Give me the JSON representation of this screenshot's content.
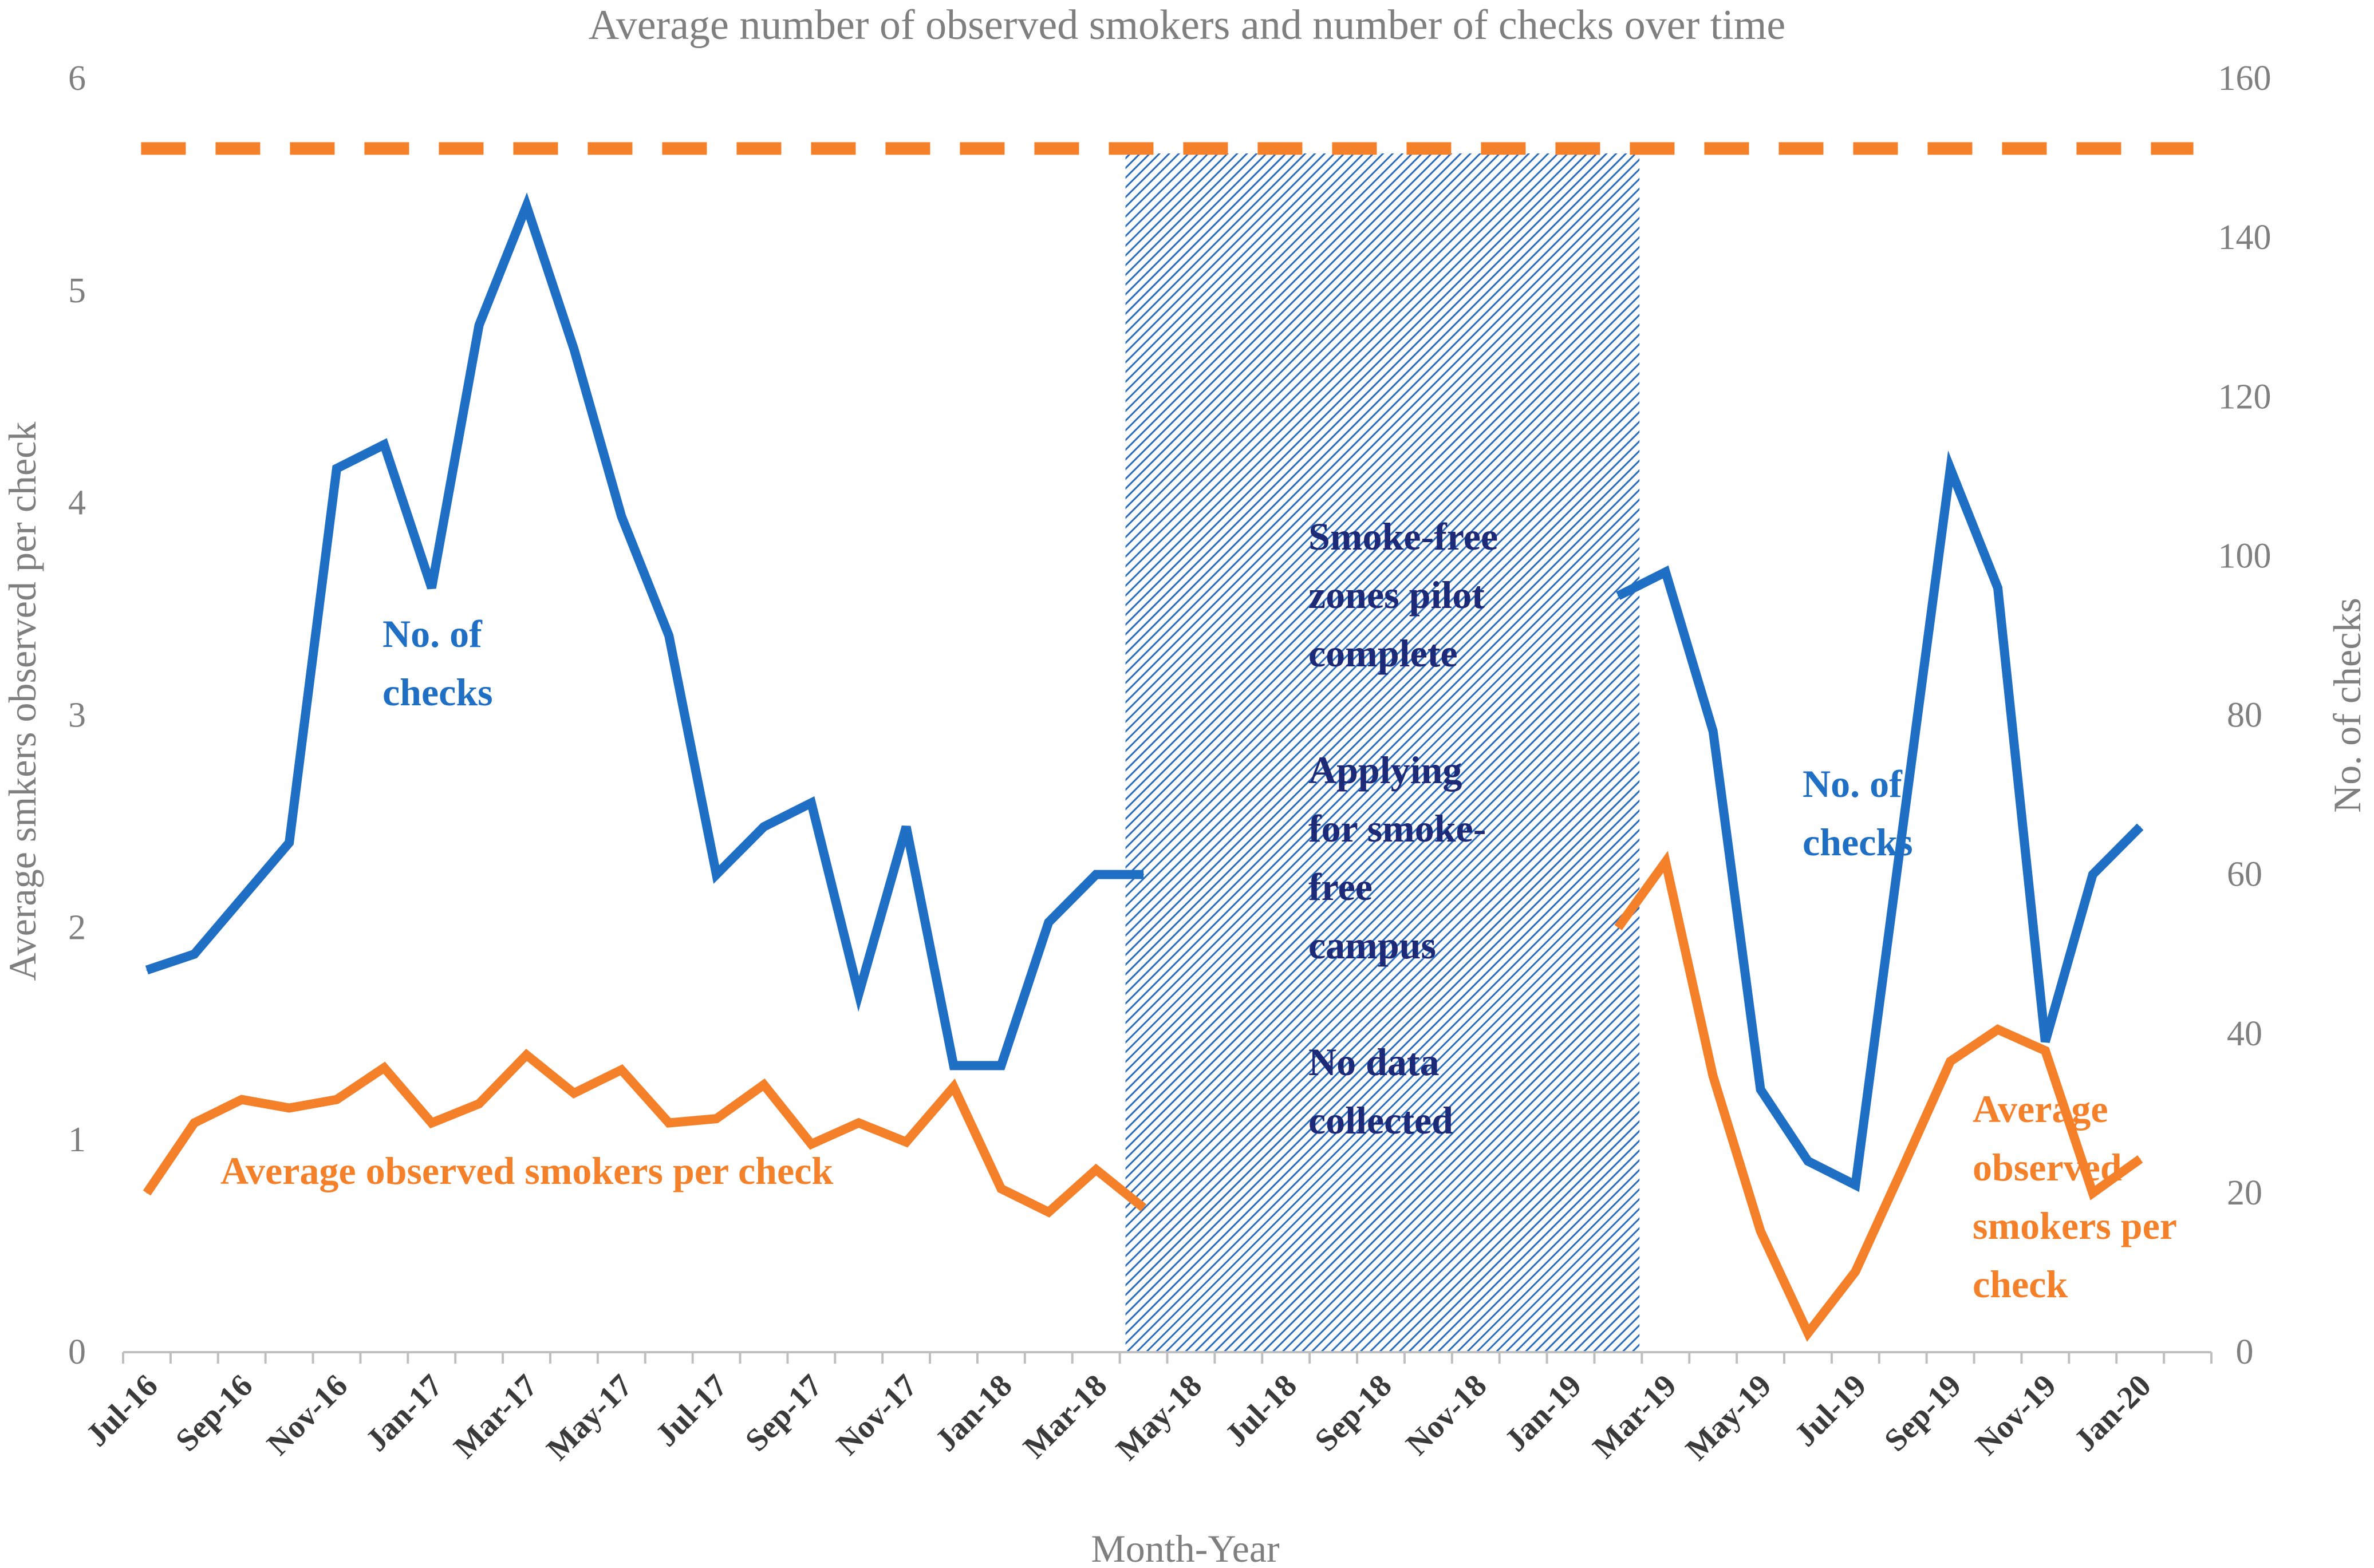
{
  "chart_data": {
    "type": "line",
    "title": "Average number of observed smokers and number of checks over time",
    "xlabel": "Month-Year",
    "ylabel_left": "Average smkers observed per check",
    "ylabel_right": "No. of checks",
    "ylim_left": [
      0,
      6
    ],
    "ylim_right": [
      0,
      160
    ],
    "yticks_left": [
      "0",
      "1",
      "2",
      "3",
      "4",
      "5",
      "6"
    ],
    "yticks_right": [
      "0",
      "20",
      "40",
      "60",
      "80",
      "100",
      "120",
      "140",
      "160"
    ],
    "x": [
      "Jul-16",
      "Aug-16",
      "Sep-16",
      "Oct-16",
      "Nov-16",
      "Dec-16",
      "Jan-17",
      "Feb-17",
      "Mar-17",
      "Apr-17",
      "May-17",
      "Jun-17",
      "Jul-17",
      "Aug-17",
      "Sep-17",
      "Oct-17",
      "Nov-17",
      "Dec-17",
      "Jan-18",
      "Feb-18",
      "Mar-18",
      "Apr-18",
      "May-18",
      "Jun-18",
      "Jul-18",
      "Aug-18",
      "Sep-18",
      "Oct-18",
      "Nov-18",
      "Dec-18",
      "Jan-19",
      "Feb-19",
      "Mar-19",
      "Apr-19",
      "May-19",
      "Jun-19",
      "Jul-19",
      "Aug-19",
      "Sep-19",
      "Oct-19",
      "Nov-19",
      "Dec-19",
      "Jan-20",
      "Feb-20"
    ],
    "x_tick_labels": [
      "Jul-16",
      "Sep-16",
      "Nov-16",
      "Jan-17",
      "Mar-17",
      "May-17",
      "Jul-17",
      "Sep-17",
      "Nov-17",
      "Jan-18",
      "Mar-18",
      "May-18",
      "Jul-18",
      "Sep-18",
      "Nov-18",
      "Jan-19",
      "Mar-19",
      "May-19",
      "Jul-19",
      "Sep-19",
      "Nov-19",
      "Jan-20"
    ],
    "series": [
      {
        "name": "No. of checks",
        "axis": "right",
        "color": "#1f6fc4",
        "values": [
          48,
          50,
          57,
          64,
          111,
          114,
          96,
          129,
          144,
          126,
          105,
          90,
          60,
          66,
          69,
          45,
          66,
          36,
          36,
          54,
          60,
          60,
          null,
          null,
          null,
          null,
          null,
          null,
          null,
          null,
          null,
          95,
          98,
          78,
          33,
          24,
          21,
          66,
          111,
          96,
          39,
          60,
          66,
          null
        ]
      },
      {
        "name": "Average observed smokers per check",
        "axis": "left",
        "color": "#f5802a",
        "values": [
          0.75,
          1.08,
          1.19,
          1.15,
          1.19,
          1.34,
          1.08,
          1.17,
          1.4,
          1.22,
          1.33,
          1.08,
          1.1,
          1.26,
          0.98,
          1.08,
          0.99,
          1.25,
          0.77,
          0.66,
          0.86,
          0.68,
          null,
          null,
          null,
          null,
          null,
          null,
          null,
          null,
          null,
          2.0,
          2.31,
          1.3,
          0.57,
          0.09,
          0.38,
          0.87,
          1.37,
          1.52,
          1.42,
          0.75,
          0.91,
          null
        ]
      }
    ],
    "reference_line": {
      "axis": "left",
      "value": 5.67,
      "style": "dashed",
      "color": "#f5802a"
    },
    "shaded_period": {
      "from": "Apr-18",
      "to": "Feb-19",
      "pattern": "diagonal-hatch",
      "color": "#2a6cc0"
    },
    "annotations": {
      "checks_left": [
        "No. of",
        "checks"
      ],
      "smokers_left": [
        "Average observed smokers per check"
      ],
      "shaded": [
        "Smoke-free",
        "zones pilot",
        "complete",
        "",
        "Applying",
        "for smoke-",
        "free",
        "campus",
        "",
        "No data",
        "collected"
      ],
      "checks_right": [
        "No. of",
        "checks"
      ],
      "smokers_right": [
        "Average",
        "observed",
        "smokers per",
        "check"
      ]
    },
    "grid": false,
    "legend": "none"
  }
}
